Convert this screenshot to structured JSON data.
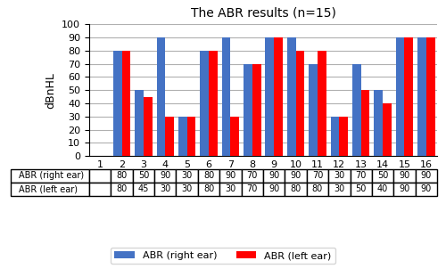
{
  "chart_data": {
    "type": "bar",
    "title": "The ABR results (n=15)",
    "categories": [
      "1",
      "2",
      "3",
      "4",
      "5",
      "6",
      "7",
      "8",
      "9",
      "10",
      "11",
      "12",
      "13",
      "14",
      "15",
      "16"
    ],
    "series": [
      {
        "name": "ABR (right ear)",
        "color": "#4472C4",
        "values": [
          0,
          80,
          50,
          90,
          30,
          80,
          90,
          70,
          90,
          90,
          70,
          30,
          70,
          50,
          90,
          90
        ],
        "value_labels": [
          null,
          "80",
          "50",
          "90",
          "30",
          "80",
          "90",
          "70",
          "90",
          "90",
          "70",
          "30",
          "70",
          "50",
          "90",
          "90"
        ]
      },
      {
        "name": "ABR (left ear)",
        "color": "#FF0000",
        "values": [
          0,
          80,
          45,
          30,
          30,
          80,
          30,
          70,
          90,
          80,
          80,
          30,
          50,
          40,
          90,
          90
        ],
        "value_labels": [
          null,
          "80",
          "45",
          "30",
          "30",
          "80",
          "30",
          "70",
          "90",
          "80",
          "80",
          "30",
          "50",
          "40",
          "90",
          "90"
        ]
      }
    ],
    "ylabel": "dBnHL",
    "ylim": [
      0,
      100
    ],
    "yticks": [
      0,
      10,
      20,
      30,
      40,
      50,
      60,
      70,
      80,
      90,
      100
    ],
    "grid": true,
    "legend": "lower center"
  }
}
